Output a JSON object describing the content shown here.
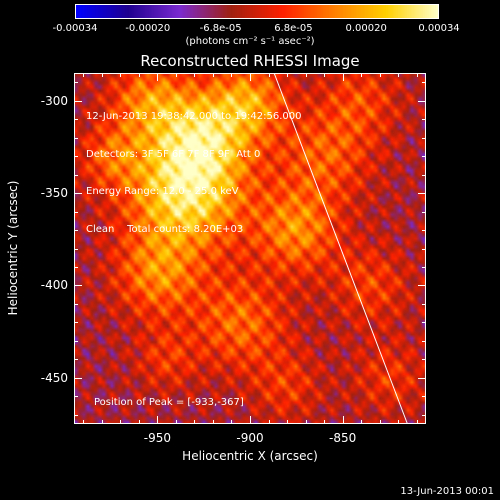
{
  "colorbar": {
    "tick_labels": [
      "-0.00034",
      "-0.00020",
      "-6.8e-05",
      "6.8e-05",
      "0.00020",
      "0.00034"
    ],
    "units": "(photons cm⁻² s⁻¹ asec⁻²)"
  },
  "chart_data": {
    "type": "heatmap",
    "title": "Reconstructed RHESSI Image",
    "xlabel": "Heliocentric X (arcsec)",
    "ylabel": "Heliocentric Y (arcsec)",
    "xlim": [
      -995,
      -805
    ],
    "ylim": [
      -475,
      -285
    ],
    "x_ticks": [
      -950,
      -900,
      -850
    ],
    "y_ticks": [
      -300,
      -350,
      -400,
      -450
    ],
    "color_range": [
      -0.00034,
      0.00034
    ],
    "colormap": [
      "#0000ff",
      "#1e0090",
      "#7b2ad0",
      "#a02010",
      "#ff2000",
      "#ff8000",
      "#ffd000",
      "#ffffc8"
    ],
    "annotations": [
      "12-Jun-2013 19:38:42.000 to 19:42:56.000",
      "Detectors: 3F 5F 6F 7F 8F 9F  Att 0",
      "Energy Range: 12.0 - 25.0 keV",
      "Clean    Total counts: 8.20E+03"
    ],
    "peak_label": "Position of Peak = [-933,-367]",
    "peak_position": [
      -933,
      -367
    ],
    "limb_line": {
      "x": [
        -887,
        -815
      ],
      "y": [
        -285,
        -475
      ]
    },
    "sources": [
      {
        "x": -935,
        "y": -350,
        "sigma": 22,
        "amp": 1.0
      },
      {
        "x": -925,
        "y": -318,
        "sigma": 18,
        "amp": 0.75
      },
      {
        "x": -955,
        "y": -300,
        "sigma": 15,
        "amp": 0.55
      },
      {
        "x": -900,
        "y": -300,
        "sigma": 14,
        "amp": 0.6
      },
      {
        "x": -950,
        "y": -395,
        "sigma": 16,
        "amp": 0.55
      },
      {
        "x": -905,
        "y": -420,
        "sigma": 18,
        "amp": 0.5
      },
      {
        "x": -875,
        "y": -370,
        "sigma": 16,
        "amp": 0.6
      },
      {
        "x": -860,
        "y": -330,
        "sigma": 18,
        "amp": 0.45
      },
      {
        "x": -840,
        "y": -300,
        "sigma": 15,
        "amp": 0.35
      },
      {
        "x": -835,
        "y": -400,
        "sigma": 15,
        "amp": 0.35
      },
      {
        "x": -825,
        "y": -450,
        "sigma": 14,
        "amp": 0.3
      },
      {
        "x": -975,
        "y": -330,
        "sigma": 12,
        "amp": 0.4
      },
      {
        "x": -880,
        "y": -455,
        "sigma": 13,
        "amp": 0.3
      },
      {
        "x": -945,
        "y": -440,
        "sigma": 12,
        "amp": 0.3
      }
    ]
  },
  "footer": {
    "timestamp": "13-Jun-2013 00:01"
  }
}
